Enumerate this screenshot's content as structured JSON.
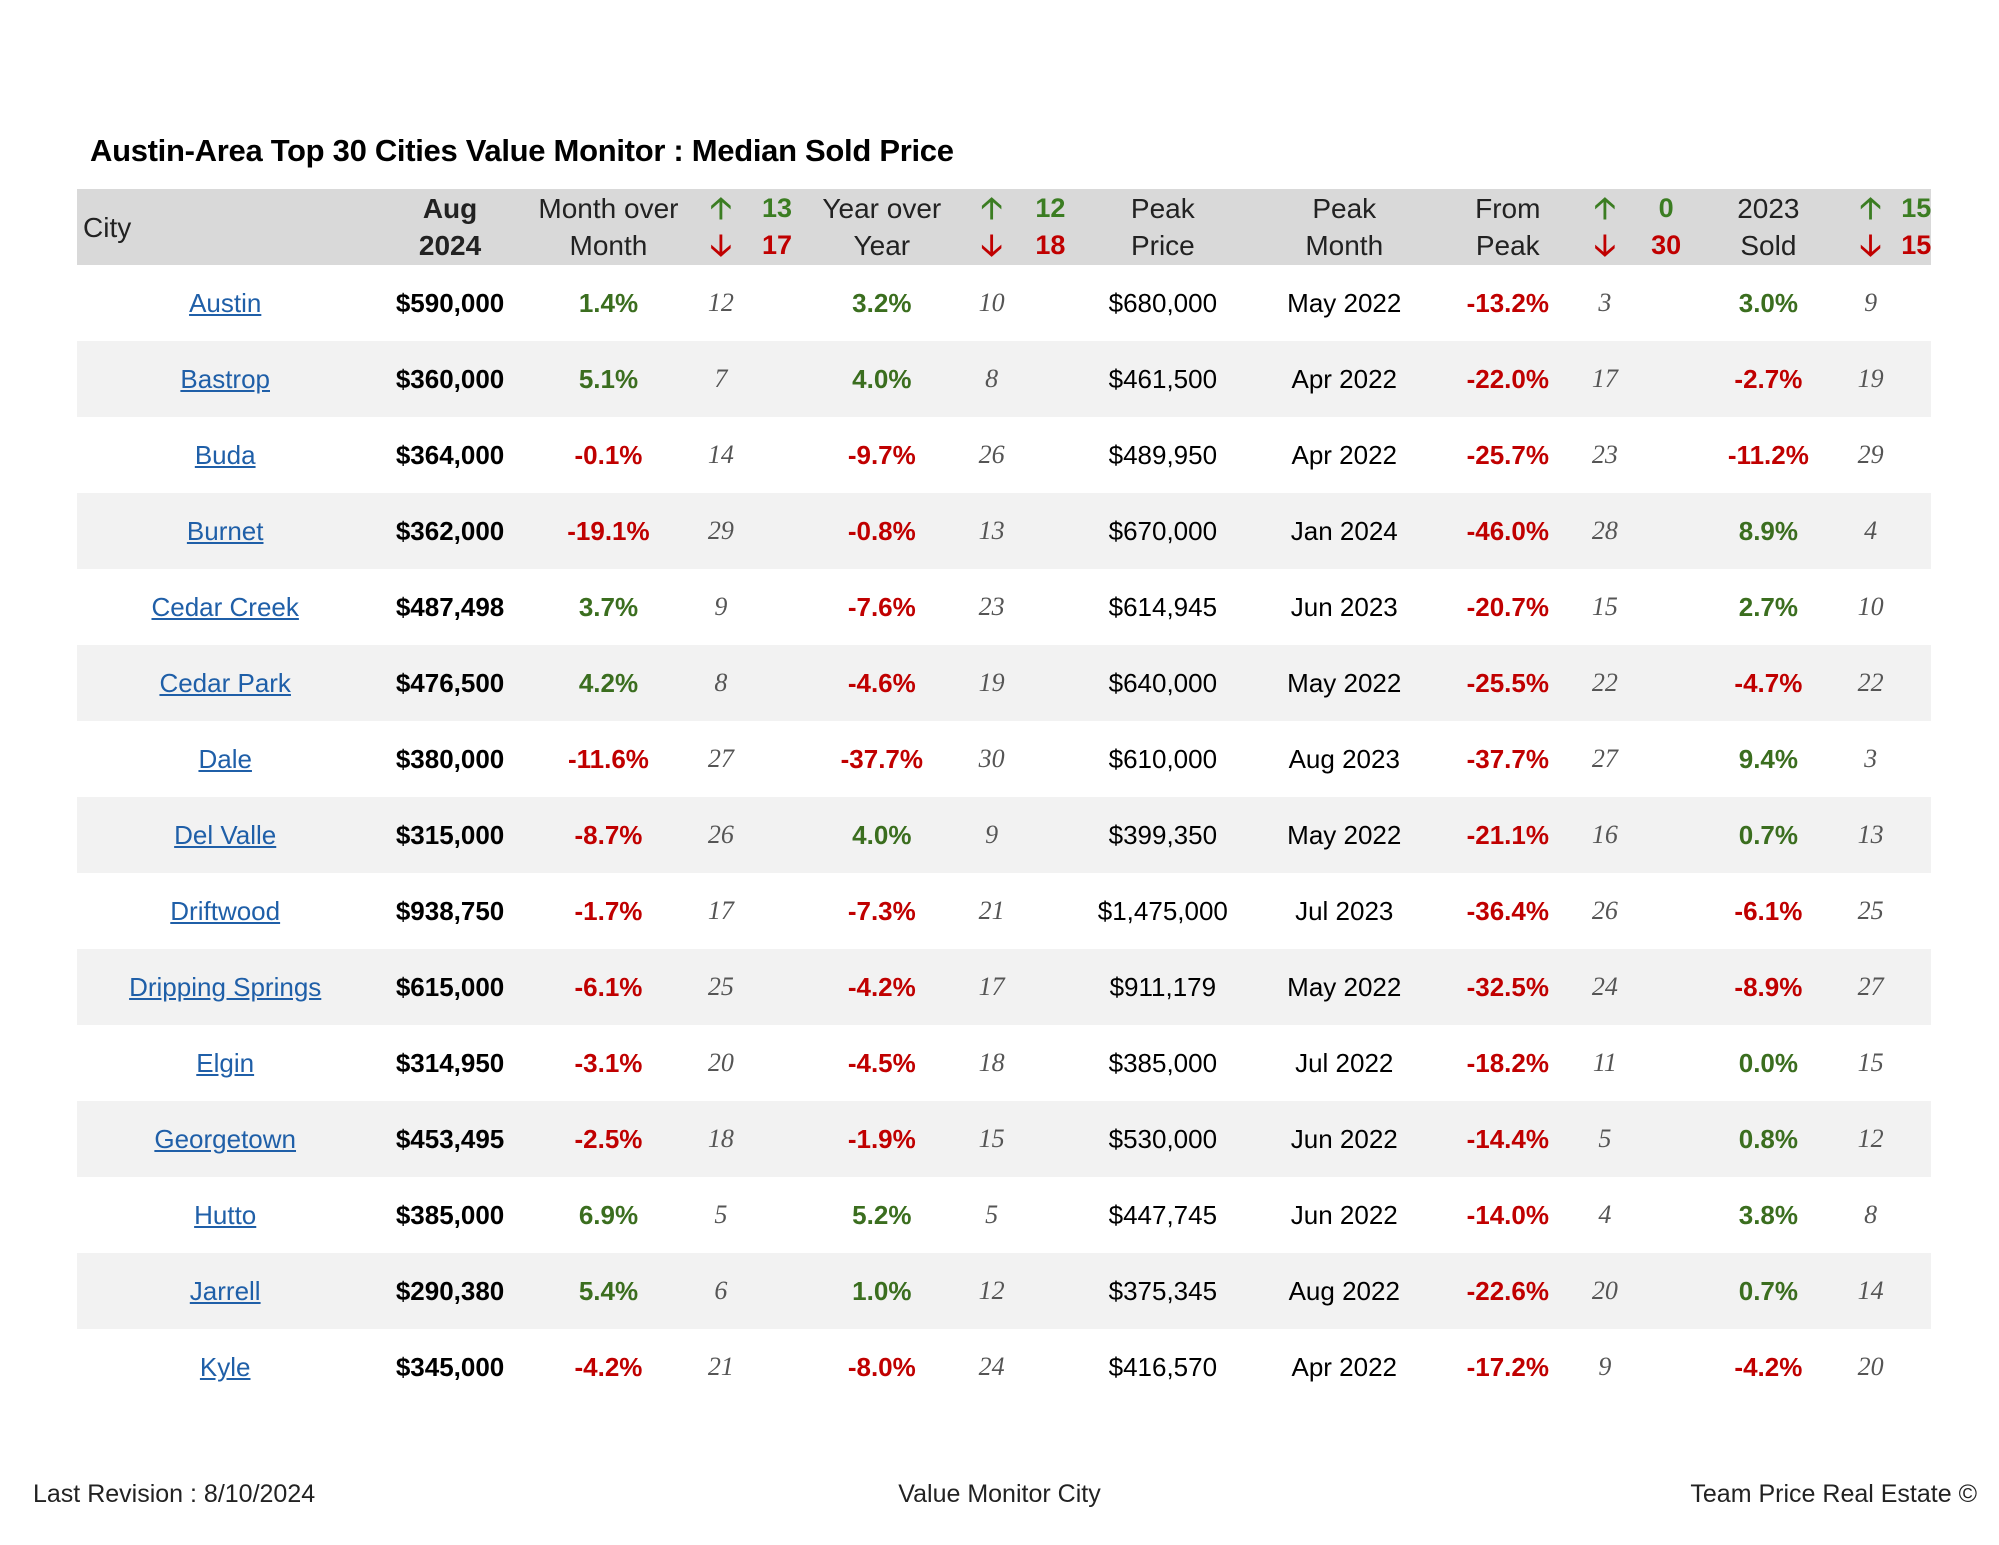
{
  "title": "Austin-Area Top 30 Cities Value Monitor : Median Sold Price",
  "headers": {
    "city": "City",
    "aug1": "Aug",
    "aug2": "2024",
    "mom1": "Month over",
    "mom2": "Month",
    "mom_up": "13",
    "mom_down": "17",
    "yoy1": "Year over",
    "yoy2": "Year",
    "yoy_up": "12",
    "yoy_down": "18",
    "peak1": "Peak",
    "peak2": "Price",
    "pm1": "Peak",
    "pm2": "Month",
    "fp1": "From",
    "fp2": "Peak",
    "fp_up": "0",
    "fp_down": "30",
    "sold1": "2023",
    "sold2": "Sold",
    "sold_up": "15",
    "sold_down": "15",
    "arrow_up": "🡡",
    "arrow_down": "🡣"
  },
  "colors": {
    "positive": "#3b6e1f",
    "negative": "#c00000",
    "link": "#1f5fa8",
    "header_bg": "#d9d9d9",
    "alt_row_bg": "#f2f2f2"
  },
  "icons": {
    "up": "arrow-up-icon",
    "down": "arrow-down-icon"
  },
  "rows": [
    {
      "city": "Austin",
      "price": "$590,000",
      "mom": "1.4%",
      "mom_rank": "12",
      "yoy": "3.2%",
      "yoy_rank": "10",
      "peak_price": "$680,000",
      "peak_month": "May 2022",
      "from_peak": "-13.2%",
      "fp_rank": "3",
      "sold": "3.0%",
      "sold_rank": "9"
    },
    {
      "city": "Bastrop",
      "price": "$360,000",
      "mom": "5.1%",
      "mom_rank": "7",
      "yoy": "4.0%",
      "yoy_rank": "8",
      "peak_price": "$461,500",
      "peak_month": "Apr 2022",
      "from_peak": "-22.0%",
      "fp_rank": "17",
      "sold": "-2.7%",
      "sold_rank": "19"
    },
    {
      "city": "Buda",
      "price": "$364,000",
      "mom": "-0.1%",
      "mom_rank": "14",
      "yoy": "-9.7%",
      "yoy_rank": "26",
      "peak_price": "$489,950",
      "peak_month": "Apr 2022",
      "from_peak": "-25.7%",
      "fp_rank": "23",
      "sold": "-11.2%",
      "sold_rank": "29"
    },
    {
      "city": "Burnet",
      "price": "$362,000",
      "mom": "-19.1%",
      "mom_rank": "29",
      "yoy": "-0.8%",
      "yoy_rank": "13",
      "peak_price": "$670,000",
      "peak_month": "Jan 2024",
      "from_peak": "-46.0%",
      "fp_rank": "28",
      "sold": "8.9%",
      "sold_rank": "4"
    },
    {
      "city": "Cedar Creek",
      "price": "$487,498",
      "mom": "3.7%",
      "mom_rank": "9",
      "yoy": "-7.6%",
      "yoy_rank": "23",
      "peak_price": "$614,945",
      "peak_month": "Jun 2023",
      "from_peak": "-20.7%",
      "fp_rank": "15",
      "sold": "2.7%",
      "sold_rank": "10"
    },
    {
      "city": "Cedar Park",
      "price": "$476,500",
      "mom": "4.2%",
      "mom_rank": "8",
      "yoy": "-4.6%",
      "yoy_rank": "19",
      "peak_price": "$640,000",
      "peak_month": "May 2022",
      "from_peak": "-25.5%",
      "fp_rank": "22",
      "sold": "-4.7%",
      "sold_rank": "22"
    },
    {
      "city": "Dale",
      "price": "$380,000",
      "mom": "-11.6%",
      "mom_rank": "27",
      "yoy": "-37.7%",
      "yoy_rank": "30",
      "peak_price": "$610,000",
      "peak_month": "Aug 2023",
      "from_peak": "-37.7%",
      "fp_rank": "27",
      "sold": "9.4%",
      "sold_rank": "3"
    },
    {
      "city": "Del Valle",
      "price": "$315,000",
      "mom": "-8.7%",
      "mom_rank": "26",
      "yoy": "4.0%",
      "yoy_rank": "9",
      "peak_price": "$399,350",
      "peak_month": "May 2022",
      "from_peak": "-21.1%",
      "fp_rank": "16",
      "sold": "0.7%",
      "sold_rank": "13"
    },
    {
      "city": "Driftwood",
      "price": "$938,750",
      "mom": "-1.7%",
      "mom_rank": "17",
      "yoy": "-7.3%",
      "yoy_rank": "21",
      "peak_price": "$1,475,000",
      "peak_month": "Jul 2023",
      "from_peak": "-36.4%",
      "fp_rank": "26",
      "sold": "-6.1%",
      "sold_rank": "25"
    },
    {
      "city": "Dripping Springs",
      "price": "$615,000",
      "mom": "-6.1%",
      "mom_rank": "25",
      "yoy": "-4.2%",
      "yoy_rank": "17",
      "peak_price": "$911,179",
      "peak_month": "May 2022",
      "from_peak": "-32.5%",
      "fp_rank": "24",
      "sold": "-8.9%",
      "sold_rank": "27"
    },
    {
      "city": "Elgin",
      "price": "$314,950",
      "mom": "-3.1%",
      "mom_rank": "20",
      "yoy": "-4.5%",
      "yoy_rank": "18",
      "peak_price": "$385,000",
      "peak_month": "Jul 2022",
      "from_peak": "-18.2%",
      "fp_rank": "11",
      "sold": "0.0%",
      "sold_rank": "15"
    },
    {
      "city": "Georgetown",
      "price": "$453,495",
      "mom": "-2.5%",
      "mom_rank": "18",
      "yoy": "-1.9%",
      "yoy_rank": "15",
      "peak_price": "$530,000",
      "peak_month": "Jun 2022",
      "from_peak": "-14.4%",
      "fp_rank": "5",
      "sold": "0.8%",
      "sold_rank": "12"
    },
    {
      "city": "Hutto",
      "price": "$385,000",
      "mom": "6.9%",
      "mom_rank": "5",
      "yoy": "5.2%",
      "yoy_rank": "5",
      "peak_price": "$447,745",
      "peak_month": "Jun 2022",
      "from_peak": "-14.0%",
      "fp_rank": "4",
      "sold": "3.8%",
      "sold_rank": "8"
    },
    {
      "city": "Jarrell",
      "price": "$290,380",
      "mom": "5.4%",
      "mom_rank": "6",
      "yoy": "1.0%",
      "yoy_rank": "12",
      "peak_price": "$375,345",
      "peak_month": "Aug 2022",
      "from_peak": "-22.6%",
      "fp_rank": "20",
      "sold": "0.7%",
      "sold_rank": "14"
    },
    {
      "city": "Kyle",
      "price": "$345,000",
      "mom": "-4.2%",
      "mom_rank": "21",
      "yoy": "-8.0%",
      "yoy_rank": "24",
      "peak_price": "$416,570",
      "peak_month": "Apr 2022",
      "from_peak": "-17.2%",
      "fp_rank": "9",
      "sold": "-4.2%",
      "sold_rank": "20"
    }
  ],
  "footer": {
    "left": "Last Revision : 8/10/2024",
    "center": "Value Monitor City",
    "right": "Team Price Real Estate ©"
  }
}
